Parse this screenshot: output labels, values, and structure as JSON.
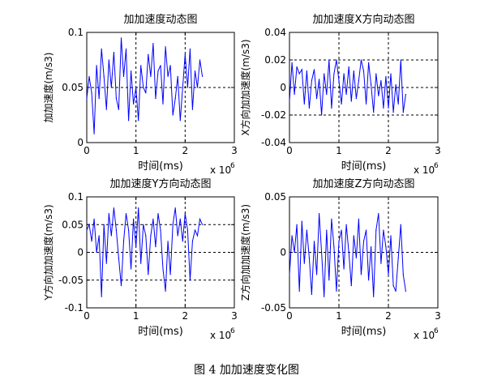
{
  "caption": "图 4  加加速度变化图",
  "chart_data": [
    {
      "type": "line",
      "title": "加加速度动态图",
      "xlabel": "时间(ms)",
      "ylabel": "加加速度(m/s3)",
      "x_multiplier_label": "x 10",
      "x_multiplier_exp": "6",
      "xlim": [
        0,
        3
      ],
      "ylim": [
        0,
        0.1
      ],
      "xticks": [
        "0",
        "1",
        "2",
        "3"
      ],
      "yticks": [
        "0",
        "0.05",
        "0.1"
      ],
      "ytick_values": [
        0,
        0.05,
        0.1
      ],
      "grid": true,
      "grid_style": "dotted, at x = 1 and 2 and y = mid-range",
      "line_color": "#0000ff",
      "x": [
        0.0,
        0.05,
        0.1,
        0.15,
        0.2,
        0.25,
        0.3,
        0.35,
        0.4,
        0.45,
        0.5,
        0.55,
        0.6,
        0.65,
        0.7,
        0.75,
        0.8,
        0.85,
        0.9,
        0.95,
        1.0,
        1.05,
        1.1,
        1.15,
        1.2,
        1.25,
        1.3,
        1.35,
        1.4,
        1.45,
        1.5,
        1.55,
        1.6,
        1.65,
        1.7,
        1.75,
        1.8,
        1.85,
        1.9,
        1.95,
        2.0,
        2.05,
        2.1,
        2.15,
        2.2,
        2.25,
        2.3,
        2.35
      ],
      "values": [
        0.04,
        0.06,
        0.045,
        0.008,
        0.07,
        0.04,
        0.085,
        0.06,
        0.03,
        0.075,
        0.05,
        0.082,
        0.04,
        0.03,
        0.095,
        0.06,
        0.085,
        0.02,
        0.065,
        0.035,
        0.05,
        0.02,
        0.07,
        0.05,
        0.045,
        0.08,
        0.06,
        0.09,
        0.04,
        0.065,
        0.07,
        0.035,
        0.087,
        0.06,
        0.07,
        0.025,
        0.04,
        0.06,
        0.02,
        0.05,
        0.08,
        0.05,
        0.085,
        0.03,
        0.065,
        0.05,
        0.075,
        0.06
      ]
    },
    {
      "type": "line",
      "title": "加加速度X方向动态图",
      "xlabel": "时间(ms)",
      "ylabel": "X方向加加速度(m/s3)",
      "x_multiplier_label": "x 10",
      "x_multiplier_exp": "6",
      "xlim": [
        0,
        3
      ],
      "ylim": [
        -0.04,
        0.04
      ],
      "xticks": [
        "0",
        "1",
        "2",
        "3"
      ],
      "yticks": [
        "-0.04",
        "-0.02",
        "0",
        "0.02",
        "0.04"
      ],
      "ytick_values": [
        -0.04,
        -0.02,
        0,
        0.02,
        0.04
      ],
      "grid": true,
      "grid_style": "dotted, at x = 1 and 2 and y = -0.02, 0, 0.02",
      "line_color": "#0000ff",
      "x": [
        0.0,
        0.05,
        0.1,
        0.15,
        0.2,
        0.25,
        0.3,
        0.35,
        0.4,
        0.45,
        0.5,
        0.55,
        0.6,
        0.65,
        0.7,
        0.75,
        0.8,
        0.85,
        0.9,
        0.95,
        1.0,
        1.05,
        1.1,
        1.15,
        1.2,
        1.25,
        1.3,
        1.35,
        1.4,
        1.45,
        1.5,
        1.55,
        1.6,
        1.65,
        1.7,
        1.75,
        1.8,
        1.85,
        1.9,
        1.95,
        2.0,
        2.05,
        2.1,
        2.15,
        2.2,
        2.25,
        2.3,
        2.35
      ],
      "values": [
        -0.01,
        0.018,
        -0.005,
        0.015,
        0.01,
        0.013,
        -0.012,
        0.012,
        -0.015,
        0.005,
        0.013,
        -0.008,
        0.006,
        -0.02,
        0.01,
        -0.005,
        0.02,
        -0.015,
        0.01,
        0.02,
        0.005,
        -0.012,
        0.01,
        -0.005,
        0.015,
        -0.01,
        0.012,
        -0.008,
        0.005,
        0.02,
        0.012,
        -0.012,
        0.018,
        0.002,
        -0.018,
        0.01,
        -0.006,
        0.005,
        -0.015,
        0.008,
        -0.015,
        0.01,
        -0.018,
        0.002,
        -0.012,
        0.02,
        -0.018,
        -0.005
      ]
    },
    {
      "type": "line",
      "title": "加加速度Y方向动态图",
      "xlabel": "时间(ms)",
      "ylabel": "Y方向加加速度(m/s3)",
      "x_multiplier_label": "x 10",
      "x_multiplier_exp": "6",
      "xlim": [
        0,
        3
      ],
      "ylim": [
        -0.1,
        0.1
      ],
      "xticks": [
        "0",
        "1",
        "2",
        "3"
      ],
      "yticks": [
        "-0.1",
        "-0.05",
        "0",
        "0.05",
        "0.1"
      ],
      "ytick_values": [
        -0.1,
        -0.05,
        0,
        0.05,
        0.1
      ],
      "grid": true,
      "grid_style": "dotted, at x = 1 and 2 and y = -0.05, 0, 0.05",
      "line_color": "#0000ff",
      "x": [
        0.0,
        0.05,
        0.1,
        0.15,
        0.2,
        0.25,
        0.3,
        0.35,
        0.4,
        0.45,
        0.5,
        0.55,
        0.6,
        0.65,
        0.7,
        0.75,
        0.8,
        0.85,
        0.9,
        0.95,
        1.0,
        1.05,
        1.1,
        1.15,
        1.2,
        1.25,
        1.3,
        1.35,
        1.4,
        1.45,
        1.5,
        1.55,
        1.6,
        1.65,
        1.7,
        1.75,
        1.8,
        1.85,
        1.9,
        1.95,
        2.0,
        2.05,
        2.1,
        2.15,
        2.2,
        2.25,
        2.3,
        2.35
      ],
      "values": [
        0.04,
        0.05,
        0.02,
        0.06,
        0.0,
        0.03,
        -0.08,
        0.05,
        -0.02,
        0.07,
        0.03,
        0.08,
        0.04,
        -0.01,
        -0.06,
        0.02,
        0.07,
        0.04,
        -0.03,
        0.06,
        0.01,
        0.08,
        -0.02,
        0.05,
        0.03,
        -0.04,
        0.03,
        0.06,
        0.01,
        0.07,
        0.04,
        -0.03,
        -0.07,
        0.02,
        -0.04,
        0.05,
        0.08,
        0.03,
        0.06,
        0.02,
        0.07,
        0.04,
        -0.05,
        0.02,
        0.04,
        0.03,
        0.06,
        0.05
      ]
    },
    {
      "type": "line",
      "title": "加加速度Z方向动态图",
      "xlabel": "时间(ms)",
      "ylabel": "Z方向加加速度(m/s3)",
      "x_multiplier_label": "x 10",
      "x_multiplier_exp": "6",
      "xlim": [
        0,
        3
      ],
      "ylim": [
        -0.05,
        0.05
      ],
      "xticks": [
        "0",
        "1",
        "2",
        "3"
      ],
      "yticks": [
        "-0.05",
        "0",
        "0.05"
      ],
      "ytick_values": [
        -0.05,
        0,
        0.05
      ],
      "grid": true,
      "grid_style": "dotted, at x = 1 and 2 and y = 0",
      "line_color": "#0000ff",
      "x": [
        0.0,
        0.05,
        0.1,
        0.15,
        0.2,
        0.25,
        0.3,
        0.35,
        0.4,
        0.45,
        0.5,
        0.55,
        0.6,
        0.65,
        0.7,
        0.75,
        0.8,
        0.85,
        0.9,
        0.95,
        1.0,
        1.05,
        1.1,
        1.15,
        1.2,
        1.25,
        1.3,
        1.35,
        1.4,
        1.45,
        1.5,
        1.55,
        1.6,
        1.65,
        1.7,
        1.75,
        1.8,
        1.85,
        1.9,
        1.95,
        2.0,
        2.05,
        2.1,
        2.15,
        2.2,
        2.25,
        2.3,
        2.35
      ],
      "values": [
        -0.02,
        0.015,
        0.0,
        0.025,
        -0.035,
        0.028,
        -0.01,
        0.02,
        -0.005,
        -0.038,
        0.01,
        -0.02,
        0.035,
        0.0,
        -0.04,
        0.02,
        -0.025,
        0.03,
        0.005,
        -0.035,
        0.01,
        0.02,
        -0.015,
        0.025,
        0.0,
        -0.03,
        0.015,
        -0.005,
        0.03,
        -0.02,
        0.01,
        0.02,
        -0.025,
        0.005,
        -0.04,
        0.02,
        0.035,
        -0.01,
        0.02,
        0.005,
        -0.02,
        0.015,
        -0.03,
        -0.035,
        -0.005,
        0.025,
        -0.02,
        -0.035
      ]
    }
  ]
}
